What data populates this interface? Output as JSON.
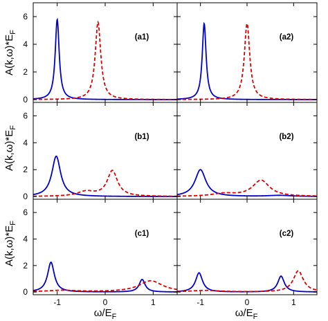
{
  "chart_data": {
    "type": "line",
    "ylabel": "A(k,ω)*E",
    "ylabel_sub": "F",
    "xlabel": "ω/E",
    "xlabel_sub": "F",
    "xlim": [
      -1.5,
      1.5
    ],
    "ylim": [
      -0.2,
      7.0
    ],
    "xticks": [
      -1,
      0,
      1
    ],
    "xtick_labels": [
      "-1",
      "0",
      "1"
    ],
    "yticks": [
      0,
      2,
      4,
      6
    ],
    "ytick_labels": [
      "0",
      "2",
      "4",
      "6"
    ],
    "colors": {
      "solid": "#0000cc",
      "dashed": "#dd0000"
    },
    "panels": [
      {
        "id": "a1",
        "label": "(a1)",
        "row": 0,
        "col": 0,
        "solid": [
          {
            "center": -1.0,
            "width": 0.05,
            "height": 5.8
          }
        ],
        "dashed": [
          {
            "center": -0.15,
            "width": 0.07,
            "height": 5.6
          }
        ]
      },
      {
        "id": "a2",
        "label": "(a2)",
        "row": 0,
        "col": 1,
        "solid": [
          {
            "center": -0.92,
            "width": 0.05,
            "height": 5.5
          }
        ],
        "dashed": [
          {
            "center": 0.0,
            "width": 0.07,
            "height": 5.5
          }
        ]
      },
      {
        "id": "b1",
        "label": "(b1)",
        "row": 1,
        "col": 0,
        "solid": [
          {
            "center": -1.02,
            "width": 0.11,
            "height": 3.0
          }
        ],
        "dashed": [
          {
            "center": 0.15,
            "width": 0.13,
            "height": 1.9
          },
          {
            "center": -0.4,
            "width": 0.22,
            "height": 0.35
          }
        ]
      },
      {
        "id": "b2",
        "label": "(b2)",
        "row": 1,
        "col": 1,
        "solid": [
          {
            "center": -1.0,
            "width": 0.14,
            "height": 2.0
          },
          {
            "center": 0.7,
            "width": 0.3,
            "height": 0.08
          }
        ],
        "dashed": [
          {
            "center": 0.3,
            "width": 0.22,
            "height": 1.2
          },
          {
            "center": -0.5,
            "width": 0.3,
            "height": 0.2
          }
        ]
      },
      {
        "id": "c1",
        "label": "(c1)",
        "row": 2,
        "col": 0,
        "solid": [
          {
            "center": -1.13,
            "width": 0.085,
            "height": 2.25
          },
          {
            "center": 0.77,
            "width": 0.075,
            "height": 0.95
          }
        ],
        "dashed": [
          {
            "center": 0.95,
            "width": 0.3,
            "height": 0.85
          },
          {
            "center": -0.9,
            "width": 0.4,
            "height": 0.12
          }
        ]
      },
      {
        "id": "c2",
        "label": "(c2)",
        "row": 2,
        "col": 1,
        "solid": [
          {
            "center": -1.03,
            "width": 0.09,
            "height": 1.45
          },
          {
            "center": 0.73,
            "width": 0.085,
            "height": 1.2
          }
        ],
        "dashed": [
          {
            "center": 1.1,
            "width": 0.13,
            "height": 1.6
          },
          {
            "center": -0.9,
            "width": 0.4,
            "height": 0.12
          }
        ]
      }
    ]
  }
}
